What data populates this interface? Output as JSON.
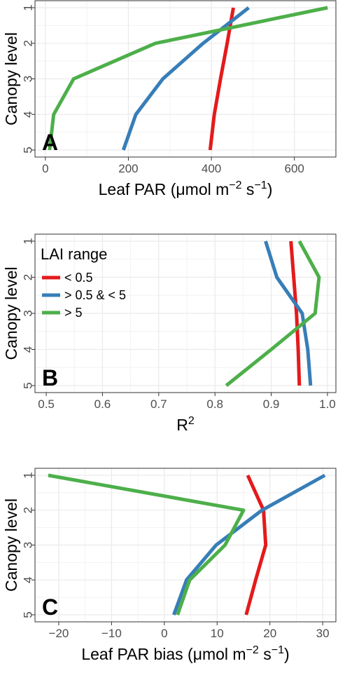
{
  "colors": {
    "lai_lt_0_5": "#e41a1c",
    "lai_0_5_to_5": "#377eb8",
    "lai_gt_5": "#4daf4a",
    "grid_major": "#ebebeb",
    "grid_minor": "#f2f2f2",
    "panel_border": "#333333"
  },
  "legend": {
    "title": "LAI  range",
    "placement": "top-left inside panel B",
    "items": [
      {
        "label": "< 0.5",
        "color": "#e41a1c"
      },
      {
        "label": "> 0.5 & < 5",
        "color": "#377eb8"
      },
      {
        "label": "> 5",
        "color": "#4daf4a"
      }
    ]
  },
  "chart_data": [
    {
      "panel": "A",
      "type": "line",
      "xlabel": "Leaf PAR (μmol m−2 s−1)",
      "ylabel": "Canopy level",
      "xlim": [
        -25,
        700
      ],
      "ylim": [
        1,
        5
      ],
      "y_reversed": true,
      "grid": true,
      "x_ticks": [
        0,
        200,
        400,
        600
      ],
      "y_ticks": [
        1,
        2,
        3,
        4,
        5
      ],
      "series": [
        {
          "name": "< 0.5",
          "color": "#e41a1c",
          "x": [
            453,
            438,
            422,
            407,
            397
          ],
          "y": [
            1,
            2,
            3,
            4,
            5
          ]
        },
        {
          "name": "> 0.5 & < 5",
          "color": "#377eb8",
          "x": [
            490,
            380,
            283,
            218,
            188
          ],
          "y": [
            1,
            2,
            3,
            4,
            5
          ]
        },
        {
          "name": "> 5",
          "color": "#4daf4a",
          "x": [
            680,
            265,
            68,
            20,
            10
          ],
          "y": [
            1,
            2,
            3,
            4,
            5
          ]
        }
      ]
    },
    {
      "panel": "B",
      "type": "line",
      "xlabel": "R2",
      "ylabel": "Canopy level",
      "xlim": [
        0.48,
        1.015
      ],
      "ylim": [
        1,
        5
      ],
      "y_reversed": true,
      "grid": true,
      "x_ticks": [
        0.5,
        0.6,
        0.7,
        0.8,
        0.9,
        1.0
      ],
      "x_tick_labels": [
        "0.5",
        "0.6",
        "0.7",
        "0.8",
        "0.9",
        "1.0"
      ],
      "y_ticks": [
        1,
        2,
        3,
        4,
        5
      ],
      "series": [
        {
          "name": "< 0.5",
          "color": "#e41a1c",
          "x": [
            0.935,
            0.94,
            0.945,
            0.948,
            0.95
          ],
          "y": [
            1,
            2,
            3,
            4,
            5
          ]
        },
        {
          "name": "> 0.5 & < 5",
          "color": "#377eb8",
          "x": [
            0.89,
            0.91,
            0.955,
            0.965,
            0.97
          ],
          "y": [
            1,
            2,
            3,
            4,
            5
          ]
        },
        {
          "name": "> 5",
          "color": "#4daf4a",
          "x": [
            0.95,
            0.985,
            0.978,
            0.9,
            0.82
          ],
          "y": [
            1,
            2,
            3,
            4,
            5
          ]
        }
      ]
    },
    {
      "panel": "C",
      "type": "line",
      "xlabel": "Leaf PAR bias (μmol m−2 s−1)",
      "ylabel": "Canopy level",
      "xlim": [
        -24.5,
        32.5
      ],
      "ylim": [
        1,
        5
      ],
      "y_reversed": true,
      "grid": true,
      "x_ticks": [
        -20,
        -10,
        0,
        10,
        20,
        30
      ],
      "y_ticks": [
        1,
        2,
        3,
        4,
        5
      ],
      "series": [
        {
          "name": "< 0.5",
          "color": "#e41a1c",
          "x": [
            15.8,
            18.8,
            19.2,
            17.3,
            15.5
          ],
          "y": [
            1,
            2,
            3,
            4,
            5
          ]
        },
        {
          "name": "> 0.5 & < 5",
          "color": "#377eb8",
          "x": [
            30.4,
            18.5,
            9.8,
            4.2,
            1.8
          ],
          "y": [
            1,
            2,
            3,
            4,
            5
          ]
        },
        {
          "name": "> 5",
          "color": "#4daf4a",
          "x": [
            -22,
            15,
            11.5,
            4.8,
            2.5
          ],
          "y": [
            1,
            2,
            3,
            4,
            5
          ]
        }
      ]
    }
  ]
}
